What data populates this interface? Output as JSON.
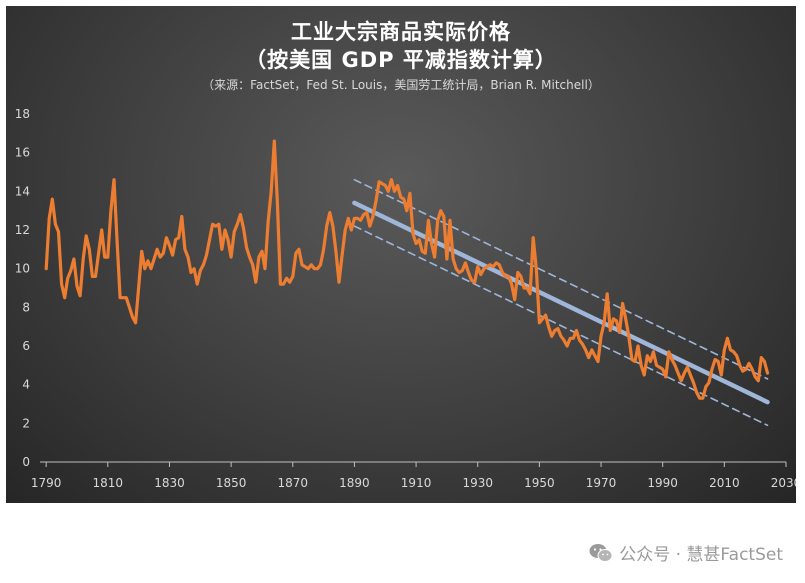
{
  "title": "工业大宗商品实际价格",
  "subtitle": "（按美国 GDP 平减指数计算）",
  "source": "（来源：FactSet，Fed St. Louis，美国劳工统计局，Brian R. Mitchell）",
  "watermark": {
    "text": "公众号 · 慧甚FactSet",
    "icon": "wechat-icon"
  },
  "colors": {
    "price_line": "#ed7d31",
    "trend_line": "#9fb6d9",
    "band_line": "#9fb6d9",
    "background": "#3a3a3a",
    "text": "#d9d9d9"
  },
  "chart_data": {
    "type": "line",
    "xlim": [
      1788,
      2030
    ],
    "ylim": [
      0,
      18
    ],
    "x_ticks": [
      "1790",
      "1810",
      "1830",
      "1850",
      "1870",
      "1890",
      "1910",
      "1930",
      "1950",
      "1970",
      "1990",
      "2010",
      "2030"
    ],
    "y_ticks": [
      "0",
      "2",
      "4",
      "6",
      "8",
      "10",
      "12",
      "14",
      "16",
      "18"
    ],
    "grid": false,
    "legend": "none",
    "series": [
      {
        "style": "solid-thick",
        "color": "#ed7d31",
        "x": [
          1790,
          1791,
          1792,
          1793,
          1794,
          1795,
          1796,
          1797,
          1798,
          1799,
          1800,
          1801,
          1802,
          1803,
          1804,
          1805,
          1806,
          1807,
          1808,
          1809,
          1810,
          1811,
          1812,
          1813,
          1814,
          1815,
          1816,
          1817,
          1818,
          1819,
          1820,
          1821,
          1822,
          1823,
          1824,
          1825,
          1826,
          1827,
          1828,
          1829,
          1830,
          1831,
          1832,
          1833,
          1834,
          1835,
          1836,
          1837,
          1838,
          1839,
          1840,
          1841,
          1842,
          1843,
          1844,
          1845,
          1846,
          1847,
          1848,
          1849,
          1850,
          1851,
          1852,
          1853,
          1854,
          1855,
          1856,
          1857,
          1858,
          1859,
          1860,
          1861,
          1862,
          1863,
          1864,
          1865,
          1866,
          1867,
          1868,
          1869,
          1870,
          1871,
          1872,
          1873,
          1874,
          1875,
          1876,
          1877,
          1878,
          1879,
          1880,
          1881,
          1882,
          1883,
          1884,
          1885,
          1886,
          1887,
          1888,
          1889,
          1890,
          1891,
          1892,
          1893,
          1894,
          1895,
          1896,
          1897,
          1898,
          1899,
          1900,
          1901,
          1902,
          1903,
          1904,
          1905,
          1906,
          1907,
          1908,
          1909,
          1910,
          1911,
          1912,
          1913,
          1914,
          1915,
          1916,
          1917,
          1918,
          1919,
          1920,
          1921,
          1922,
          1923,
          1924,
          1925,
          1926,
          1927,
          1928,
          1929,
          1930,
          1931,
          1932,
          1933,
          1934,
          1935,
          1936,
          1937,
          1938,
          1939,
          1940,
          1941,
          1942,
          1943,
          1944,
          1945,
          1946,
          1947,
          1948,
          1949,
          1950,
          1951,
          1952,
          1953,
          1954,
          1955,
          1956,
          1957,
          1958,
          1959,
          1960,
          1961,
          1962,
          1963,
          1964,
          1965,
          1966,
          1967,
          1968,
          1969,
          1970,
          1971,
          1972,
          1973,
          1974,
          1975,
          1976,
          1977,
          1978,
          1979,
          1980,
          1981,
          1982,
          1983,
          1984,
          1985,
          1986,
          1987,
          1988,
          1989,
          1990,
          1991,
          1992,
          1993,
          1994,
          1995,
          1996,
          1997,
          1998,
          1999,
          2000,
          2001,
          2002,
          2003,
          2004,
          2005,
          2006,
          2007,
          2008,
          2009,
          2010,
          2011,
          2012,
          2013,
          2014,
          2015,
          2016,
          2017,
          2018,
          2019,
          2020,
          2021,
          2022,
          2023,
          2024
        ],
        "y": [
          10.0,
          12.6,
          13.6,
          12.3,
          11.9,
          9.2,
          8.5,
          9.5,
          9.9,
          10.5,
          9.1,
          8.6,
          10.5,
          11.7,
          11.0,
          9.6,
          9.6,
          10.8,
          12.0,
          10.6,
          10.6,
          13.0,
          14.6,
          11.4,
          8.5,
          8.5,
          8.5,
          8.0,
          7.5,
          7.2,
          9.0,
          10.9,
          10.0,
          10.4,
          10.0,
          10.5,
          11.0,
          10.6,
          10.8,
          11.6,
          11.2,
          10.7,
          11.5,
          11.6,
          12.7,
          11.0,
          10.6,
          9.8,
          10.0,
          9.2,
          9.9,
          10.2,
          10.7,
          11.5,
          12.3,
          12.2,
          12.3,
          11.0,
          12.0,
          11.5,
          10.6,
          11.9,
          12.3,
          12.8,
          12.1,
          11.1,
          10.6,
          10.2,
          9.3,
          10.6,
          10.9,
          10.0,
          12.4,
          14.0,
          16.6,
          13.4,
          9.2,
          9.2,
          9.5,
          9.3,
          9.6,
          10.8,
          11.0,
          10.2,
          10.1,
          10.0,
          10.2,
          10.0,
          10.0,
          10.2,
          11.0,
          12.2,
          12.9,
          12.2,
          10.9,
          9.3,
          10.7,
          12.0,
          12.6,
          12.0,
          12.6,
          12.6,
          12.5,
          12.8,
          12.9,
          12.2,
          12.7,
          13.5,
          14.5,
          14.4,
          14.3,
          14.0,
          14.6,
          14.0,
          14.3,
          13.7,
          13.6,
          13.0,
          13.9,
          11.8,
          11.3,
          11.5,
          10.9,
          10.8,
          12.5,
          11.3,
          10.6,
          12.5,
          13.0,
          12.7,
          10.5,
          12.5,
          10.5,
          10.0,
          9.8,
          9.9,
          10.3,
          9.8,
          9.4,
          9.3,
          10.1,
          9.7,
          10.0,
          10.1,
          10.2,
          10.1,
          10.3,
          10.2,
          9.8,
          9.6,
          9.6,
          9.2,
          8.4,
          9.8,
          9.6,
          9.0,
          9.0,
          8.7,
          11.6,
          10.0,
          7.2,
          7.4,
          7.6,
          7.0,
          6.5,
          6.8,
          6.9,
          6.5,
          6.3,
          6.0,
          6.4,
          6.4,
          6.8,
          6.3,
          6.1,
          5.8,
          5.4,
          5.8,
          5.5,
          5.2,
          6.5,
          7.2,
          8.7,
          6.8,
          7.4,
          7.3,
          6.7,
          8.2,
          7.4,
          6.5,
          5.3,
          5.2,
          6.0,
          5.0,
          4.5,
          5.5,
          5.2,
          5.7,
          5.0,
          4.9,
          4.8,
          4.4,
          5.7,
          5.3,
          5.0,
          4.6,
          4.2,
          4.6,
          4.9,
          4.5,
          4.1,
          3.6,
          3.3,
          3.3,
          3.9,
          4.1,
          4.8,
          5.3,
          5.2,
          4.5,
          5.8,
          6.4,
          5.8,
          5.7,
          5.5,
          5.0,
          4.7,
          4.8,
          5.1,
          4.8,
          4.4,
          4.2,
          5.4,
          5.2,
          4.6
        ]
      },
      {
        "style": "solid-trend",
        "color": "#9fb6d9",
        "x": [
          1890,
          2024
        ],
        "y": [
          13.4,
          3.1
        ]
      },
      {
        "style": "dashed-upper",
        "color": "#9fb6d9",
        "x": [
          1890,
          2024
        ],
        "y": [
          14.6,
          4.3
        ]
      },
      {
        "style": "dashed-lower",
        "color": "#9fb6d9",
        "x": [
          1890,
          2024
        ],
        "y": [
          12.2,
          1.9
        ]
      }
    ]
  }
}
